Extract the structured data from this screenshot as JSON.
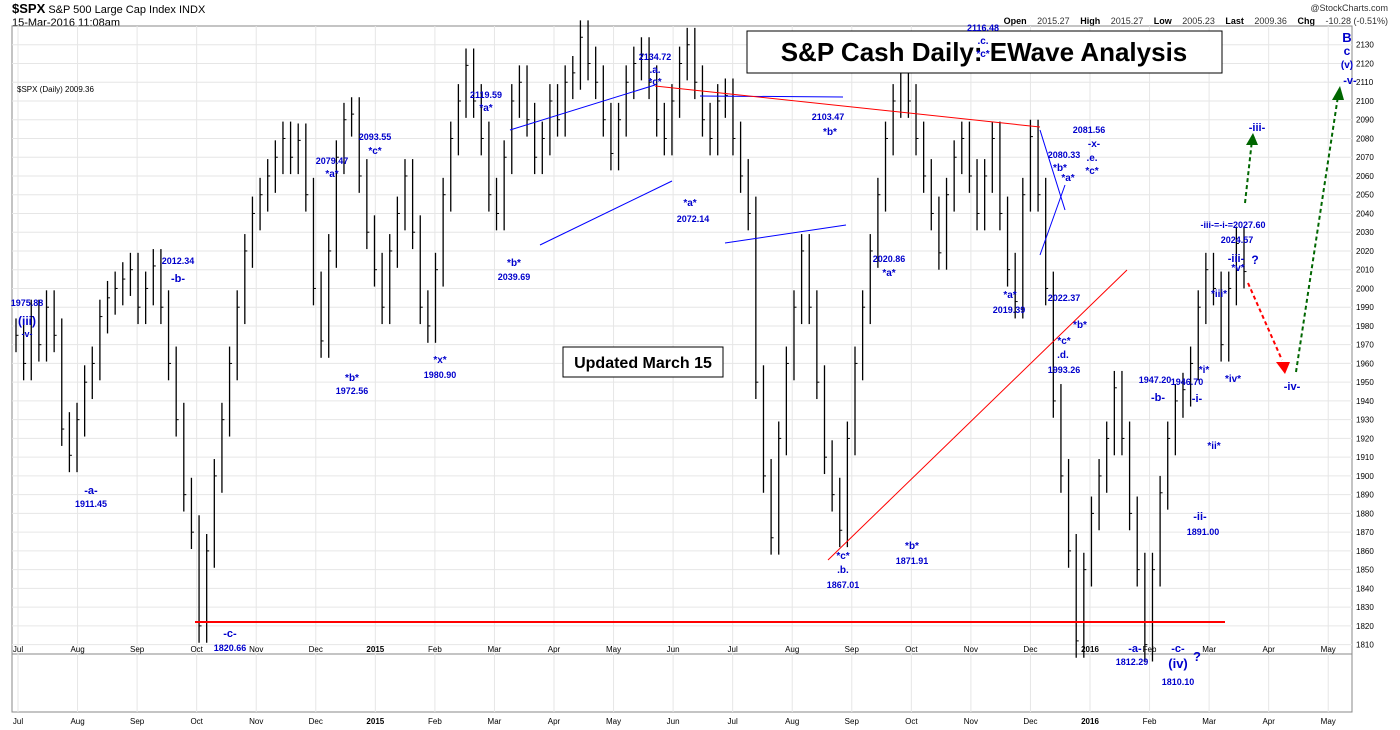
{
  "header": {
    "symbol": "$SPX",
    "name": "S&P 500 Large Cap Index",
    "exchange": "INDX",
    "timestamp": "15-Mar-2016 11:08am",
    "source": "@StockCharts.com",
    "open_label": "Open",
    "open": "2015.27",
    "high_label": "High",
    "high": "2015.27",
    "low_label": "Low",
    "low": "2005.23",
    "last_label": "Last",
    "last": "2009.36",
    "chg_label": "Chg",
    "chg": "-10.28 (-0.51%)"
  },
  "legend_text": "$SPX (Daily) 2009.36",
  "title_box": "S&P Cash Daily: EWave Analysis",
  "updated_box": "Updated March 15",
  "chart_data": {
    "type": "bar",
    "ylim": [
      1805,
      2140
    ],
    "yticks": [
      1810,
      1820,
      1830,
      1840,
      1850,
      1860,
      1870,
      1880,
      1890,
      1900,
      1910,
      1920,
      1930,
      1940,
      1950,
      1960,
      1970,
      1980,
      1990,
      2000,
      2010,
      2020,
      2030,
      2040,
      2050,
      2060,
      2070,
      2080,
      2090,
      2100,
      2110,
      2120,
      2130
    ],
    "xticks": [
      {
        "label": "Jul",
        "bold": false
      },
      {
        "label": "Aug",
        "bold": false
      },
      {
        "label": "Sep",
        "bold": false
      },
      {
        "label": "Oct",
        "bold": false
      },
      {
        "label": "Nov",
        "bold": false
      },
      {
        "label": "Dec",
        "bold": false
      },
      {
        "label": "2015",
        "bold": true
      },
      {
        "label": "Feb",
        "bold": false
      },
      {
        "label": "Mar",
        "bold": false
      },
      {
        "label": "Apr",
        "bold": false
      },
      {
        "label": "May",
        "bold": false
      },
      {
        "label": "Jun",
        "bold": false
      },
      {
        "label": "Jul",
        "bold": false
      },
      {
        "label": "Aug",
        "bold": false
      },
      {
        "label": "Sep",
        "bold": false
      },
      {
        "label": "Oct",
        "bold": false
      },
      {
        "label": "Nov",
        "bold": false
      },
      {
        "label": "Dec",
        "bold": false
      },
      {
        "label": "2016",
        "bold": true
      },
      {
        "label": "Feb",
        "bold": false
      },
      {
        "label": "Mar",
        "bold": false
      },
      {
        "label": "Apr",
        "bold": false
      },
      {
        "label": "May",
        "bold": false
      }
    ],
    "series": [
      {
        "values": [
          1975,
          1960,
          1985,
          1970,
          1990,
          1975,
          1925,
          1911,
          1930,
          1950,
          1960,
          1985,
          1995,
          2000,
          2005,
          2010,
          1990,
          2000,
          2012,
          1990,
          1960,
          1930,
          1890,
          1870,
          1820,
          1860,
          1900,
          1930,
          1960,
          1990,
          2020,
          2040,
          2050,
          2060,
          2070,
          2080,
          2070,
          2079,
          2050,
          2000,
          1972,
          2020,
          2070,
          2090,
          2093,
          2060,
          2030,
          2010,
          1990,
          2020,
          2040,
          2060,
          2030,
          1990,
          1980,
          2010,
          2050,
          2080,
          2100,
          2119,
          2100,
          2080,
          2050,
          2040,
          2070,
          2100,
          2110,
          2090,
          2070,
          2080,
          2100,
          2090,
          2110,
          2115,
          2134,
          2120,
          2110,
          2090,
          2072,
          2090,
          2110,
          2120,
          2125,
          2110,
          2090,
          2080,
          2100,
          2120,
          2130,
          2110,
          2090,
          2080,
          2100,
          2103,
          2080,
          2060,
          2040,
          1950,
          1900,
          1867,
          1920,
          1960,
          1990,
          2020,
          1990,
          1950,
          1910,
          1890,
          1871,
          1920,
          1960,
          1990,
          2020,
          2050,
          2080,
          2100,
          2116,
          2100,
          2080,
          2060,
          2040,
          2019,
          2050,
          2070,
          2080,
          2060,
          2040,
          2060,
          2080,
          2040,
          2010,
          1993,
          2050,
          2081,
          2050,
          2000,
          1940,
          1900,
          1860,
          1812,
          1850,
          1880,
          1900,
          1920,
          1947,
          1920,
          1880,
          1850,
          1810,
          1850,
          1891,
          1920,
          1940,
          1946,
          1960,
          1990,
          2010,
          2000,
          1970,
          2000,
          2024,
          2009
        ]
      }
    ]
  },
  "annotations": {
    "a1": {
      "l1": "1975.88",
      "l2": "(iii)",
      "l3": "-v-"
    },
    "a2": {
      "l1": "-a-",
      "l2": "1911.45"
    },
    "a3": {
      "l1": "2012.34",
      "l2": "-b-"
    },
    "a4": {
      "l1": "-c-",
      "l2": "1820.66"
    },
    "a5": {
      "l1": "2079.47",
      "l2": "*a*"
    },
    "a6": {
      "l1": "*b*",
      "l2": "1972.56"
    },
    "a7": {
      "l1": "2093.55",
      "l2": "*c*"
    },
    "a8": {
      "l1": "*x*",
      "l2": "1980.90"
    },
    "a9": {
      "l1": "2119.59",
      "l2": "*a*"
    },
    "a10": {
      "l1": "*b*",
      "l2": "2039.69"
    },
    "a11": {
      "l1": "2134.72",
      "l2": ".a.",
      "l3": "*c*"
    },
    "a12": {
      "l1": "*a*",
      "l2": "2072.14"
    },
    "a13": {
      "l1": "2103.47",
      "l2": "*b*"
    },
    "a14": {
      "l1": "*c*",
      "l2": ".b.",
      "l3": "1867.01"
    },
    "a15": {
      "l1": "2020.86",
      "l2": "*a*"
    },
    "a16": {
      "l1": "*b*",
      "l2": "1871.91"
    },
    "a17": {
      "l1": "2116.48",
      "l2": ".c.",
      "l3": "*c*"
    },
    "a18": {
      "l1": "*a*",
      "l2": "2019.39"
    },
    "a19": {
      "l1": "2080.33",
      "l2": "*b*"
    },
    "a20": {
      "l1": "*a*"
    },
    "a21": {
      "l1": "2081.56",
      "l2": "-x-",
      "l3": ".e.",
      "l4": "*c*"
    },
    "a22": {
      "l1": "2022.37"
    },
    "a23": {
      "l1": "*b*"
    },
    "a24": {
      "l1": "*c*",
      "l2": ".d.",
      "l3": "1993.26"
    },
    "a25": {
      "l1": "-a-",
      "l2": "1812.29"
    },
    "a26": {
      "l1": "1947.20",
      "l2": "-b-"
    },
    "a27": {
      "l1": "-c-",
      "l2": "(iv)",
      "l3": "?",
      "l4": "1810.10"
    },
    "a28": {
      "l1": "-ii-",
      "l2": "1891.00"
    },
    "a29": {
      "l1": "1946.70",
      "l2": "-i-"
    },
    "a30": {
      "l1": "*i*"
    },
    "a31": {
      "l1": "*ii*"
    },
    "a32": {
      "l1": "*iii*"
    },
    "a33": {
      "l1": "*iv*"
    },
    "a34": {
      "l1": "-iii-=-i-=2027.60",
      "l2": "2024.57",
      "l3": "-iii-",
      "l4": "*v*",
      "l5": "?"
    },
    "a35": {
      "l1": "-iii-"
    },
    "a36": {
      "l1": "-iv-"
    },
    "a37": {
      "l1": "B",
      "l2": "c",
      "l3": "(v)",
      "l4": "-v-"
    }
  },
  "colors": {
    "bars": "#000000",
    "support": "#ff0000",
    "channel": "#0000ff",
    "projection_up": "#006600",
    "projection_down": "#ff0000",
    "labels": "#0000cc"
  }
}
